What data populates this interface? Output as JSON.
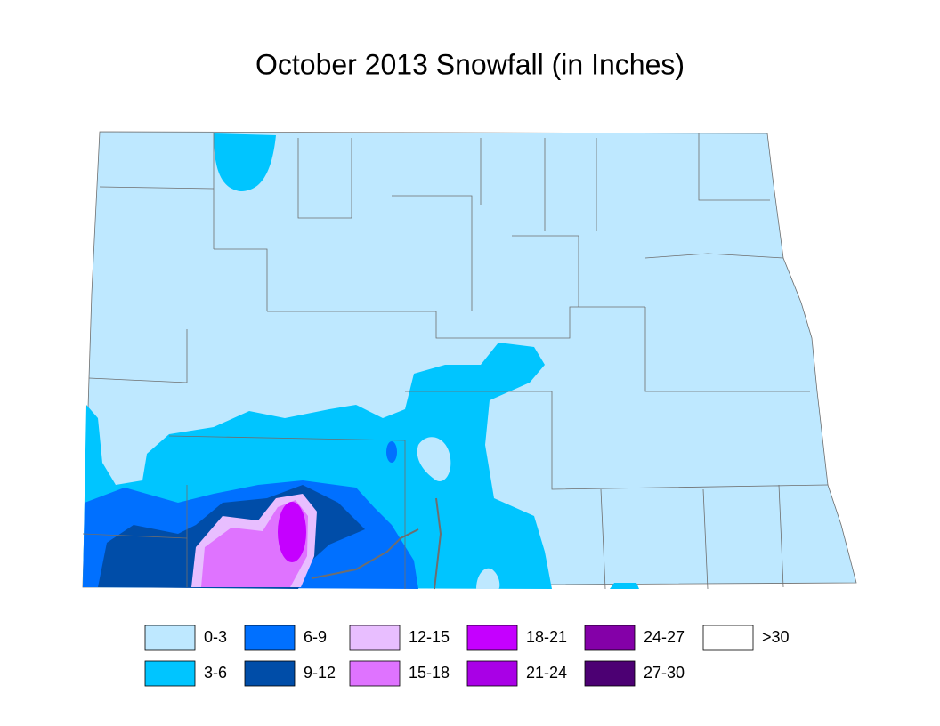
{
  "title": "October 2013 Snowfall (in Inches)",
  "legend": [
    {
      "label": "0-3",
      "color": "#bee8ff"
    },
    {
      "label": "3-6",
      "color": "#00c5ff"
    },
    {
      "label": "6-9",
      "color": "#0070ff"
    },
    {
      "label": "9-12",
      "color": "#004da8"
    },
    {
      "label": "12-15",
      "color": "#e8beff"
    },
    {
      "label": "15-18",
      "color": "#df73ff"
    },
    {
      "label": "18-21",
      "color": "#c500ff"
    },
    {
      "label": "21-24",
      "color": "#a900e6"
    },
    {
      "label": "24-27",
      "color": "#8400a8"
    },
    {
      "label": "27-30",
      "color": "#4c0073"
    },
    {
      "label": ">30",
      "color": "#ffffff"
    }
  ]
}
